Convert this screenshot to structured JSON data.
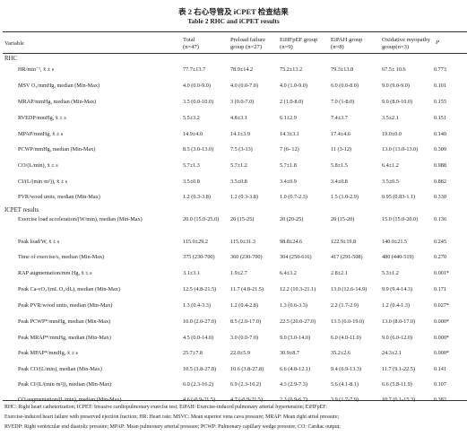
{
  "table_title_zh": "表 2   右心导管及 iCPET 检查结果",
  "table_title_en": "Table 2   RHC and iCPET results",
  "header": {
    "variable": "Variable",
    "total": "Total",
    "total_n": "(n=47)",
    "preload": "Preload failure",
    "preload_n2": "group",
    "preload_n": "(n=27)",
    "eihfpef": "EiHFpEF group",
    "eihfpef_n": "(n=9)",
    "eipah": "EiPAH group",
    "eipah_n": "(n=8)",
    "oxidative": "Oxidative myopathy",
    "oxidative_n2": "group",
    "oxidative_n": "(n=3)",
    "p": "P"
  },
  "section_rhc": "RHC",
  "section_icpet": "ICPET results",
  "rows": [
    {
      "label": "HR/min⁻¹, x̄ ± s",
      "v": [
        "77.7±13.7",
        "78.9±14.2",
        "75.2±13.2",
        "79.3±13.8",
        "67.5± 10.6",
        "0.773"
      ]
    },
    {
      "label": "MSV O₂/mmHg, median (Min-Max)",
      "v": [
        "4.0 (0.0-9.0)",
        "4.0 (0.0-7.0)",
        "4.0 (1.0-9.0)",
        "6.0 (0.0-8.0)",
        "9.0 (9.0-9.0)",
        "0.101"
      ]
    },
    {
      "label": "MRAP/mmHg, median (Min-Max)",
      "v": [
        "3.5 (0.0-10.0)",
        "3 (0.0-7.0)",
        "2 (1.0-8.0)",
        "7.0 (1-8.0)",
        "9.0 (8.0-10.0)",
        "0.155"
      ]
    },
    {
      "label": "RVEDP/mmHg, x̄ ± s",
      "v": [
        "5.5±3.2",
        "4.8±3.1",
        "6.1±2.9",
        "7.4±3.7",
        "3.5±2.1",
        "0.151"
      ]
    },
    {
      "label": "MPAP/mmHg, x̄ ± s",
      "v": [
        "14.9±4.0",
        "14.1±3.9",
        "14.3±3.1",
        "17.4±4.6",
        "19.0±0.0",
        "0.140"
      ]
    },
    {
      "label": "PCWP/mmHg, median (Min-Max)",
      "v": [
        "8.5 (3.0-13.0)",
        "7.5 (3-13)",
        "7 (6- 12)",
        "11 (3-12)",
        "13.0 (13.0-13.0)",
        "0.309"
      ]
    },
    {
      "label": "CO/(L/min), x̄ ± s",
      "v": [
        "5.7±1.3",
        "5.7±1.2",
        "5.7±1.8",
        "5.8±1.5",
        "6.4±1.2",
        "0.988"
      ]
    },
    {
      "label": "CI/(L/(min·m²)), x̄ ± s",
      "v": [
        "3.5±0.8",
        "3.5±0.8",
        "3.4±0.9",
        "3.4±0.8",
        "3.5±0.5",
        "0.882"
      ]
    },
    {
      "label": "PVR/wood units, median (Min-Max)",
      "v": [
        "1.2 (0.3-3.8)",
        "1.2 (0.3-3.8)",
        "1.0 (0.7-2.3)",
        "1.5 (1.0-2.9)",
        "0.95 (0.83-1.1)",
        "0.330"
      ]
    },
    {
      "label": "Exercise load acceleration/(W/min), median (Min-Max)",
      "v": [
        "20.0 (15.0-25.0)",
        "20 (15-25)",
        "20 (20-25)",
        "20 (15-20)",
        "15.0 (15.0-20.0)",
        "0.136"
      ]
    },
    {
      "label": "Peak load/W, x̄ ± s",
      "v": [
        "115.0±29.2",
        "115.0±31.3",
        "98.8±24.6",
        "122.9±19.8",
        "140.0±21.5",
        "0.245"
      ]
    },
    {
      "label": "Time of exercise/s, median (Min-Max)",
      "v": [
        "375 (230-700)",
        "360 (230-700)",
        "304 (250-616)",
        "417 (291-508)",
        "480 (440-519)",
        "0.270"
      ]
    },
    {
      "label": "RAP augmentation/mm Hg, x̄ ± s",
      "v": [
        "3.1±3.1",
        "1.9±2.7",
        "6.4±3.2",
        "2.8±2.1",
        "5.3±1.2",
        "0.001*"
      ]
    },
    {
      "label": "Peak Ca-vO₂/(mL O₂/dL), median (Min-Max)",
      "v": [
        "12.5 (4.8-21.5)",
        "11.7 (4.8-21.5)",
        "12.2 (10.3-21.1)",
        "13.0 (12.6-14.9)",
        "9.9 (9.4-14.3)",
        "0.171"
      ]
    },
    {
      "label": "Peak PVR/wood units, median (Min-Max)",
      "v": [
        "1.3 (0.4-3.3)",
        "1.2 (0.4-2.8)",
        "1.3 (0.6-3.3)",
        "2.2 (1.7-2.9)",
        "1.2 (0.4-1.3)",
        "0.027*"
      ]
    },
    {
      "label": "Peak PCWP*/mmHg, median (Min-Max)",
      "v": [
        "10.0 (2.0-27.0)",
        "8.5 (2.0-17.0)",
        "22.5 (20.0-27.0)",
        "13.5 (6.0-19.0)",
        "13.0 (8.0-17.0)",
        "0.000*"
      ]
    },
    {
      "label": "Peak MRAP*/mmHg, median (Min-Max)",
      "v": [
        "4.5 (0.0-14.0)",
        "3.0 (0.0-7.0)",
        "9.0 (3.0-14.0)",
        "6.0 (4.0-11.0)",
        "9.0 (6.0-12.0)",
        "0.000*"
      ]
    },
    {
      "label": "Peak MPAP*/mmHg, x̄ ± s",
      "v": [
        "25.7±7.8",
        "22.0±5.9",
        "30.9±8.7",
        "35.2±2.6",
        "24.3±2.1",
        "0.000*"
      ]
    },
    {
      "label": "Peak CO/(L/min), median (Min-Max)",
      "v": [
        "10.5 (3.8-27.8)",
        "10.6 (3.8-27.8)",
        "6.6 (4.8-12.1)",
        "9.4 (6.9-13.3)",
        "11.7 (9.1-22.5)",
        "0.141"
      ]
    },
    {
      "label": "Peak CI/(L/(min·m²)), median (Min-Max)",
      "v": [
        "6.0 (2.3-16.2)",
        "6.9 (2.3-16.2)",
        "4.3 (2.9-7.3)",
        "5.6 (4.1-8.1)",
        "6.6 (5.8-11.9)",
        "0.107"
      ]
    },
    {
      "label": "CO augmentation/(L/min), median (Min-Max)",
      "v": [
        "4.6 (-0.9-21.5)",
        "4.7 (-0.9-21.5)",
        "2.3 (0.9-6.7)",
        "3.9 (1.7-7.9)",
        "10.7 (6.1-15.3)",
        "0.382"
      ]
    }
  ],
  "footnote_lines": [
    "RHC: Right heart catheterization; ICPET: Invasive cardiopulmonary exercise test; EiPAH: Exercise-induced pulmonary arterial hypertension; EiHFpEF:",
    "Exercise-induced heart failure with preserved ejection fraction; HR: Heart rate; MSVC: Mean superior vena cava pressure; MRAP: Mean right atrial pressure;",
    "RVEDP: Right ventricular end diastolic pressure; MPAP: Mean pulmonary arterial pressure; PCWP: Pulmonary capillary wedge pressure; CO: Cardiac output;"
  ]
}
